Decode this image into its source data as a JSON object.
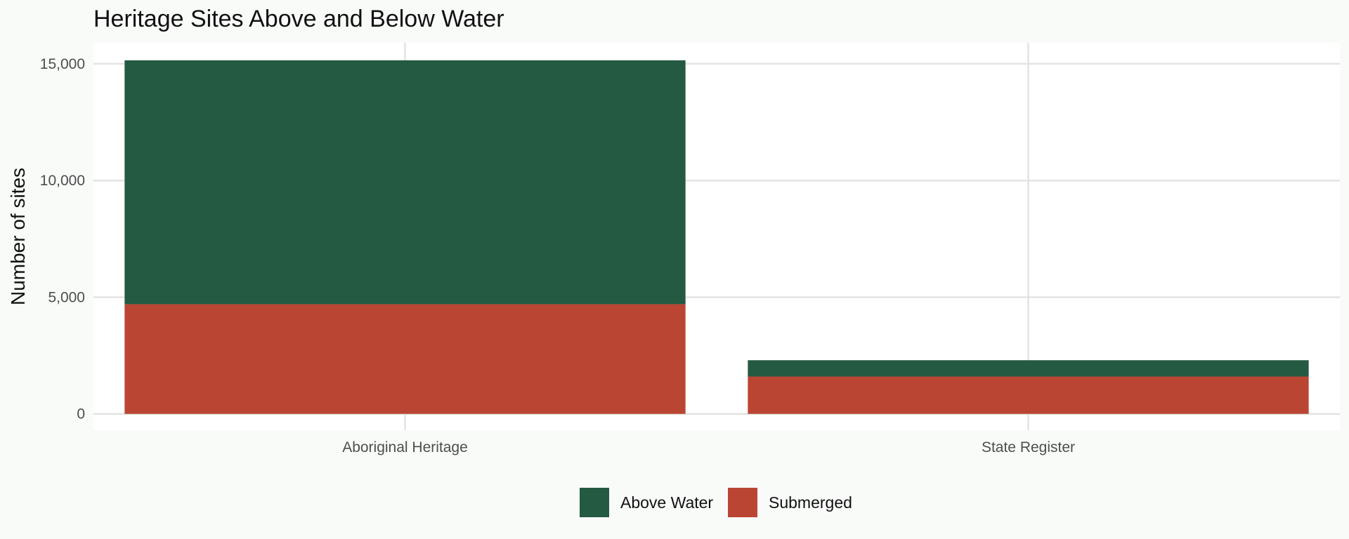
{
  "chart_data": {
    "type": "bar",
    "stacked": true,
    "title": "Heritage Sites Above and Below Water",
    "xlabel": "",
    "ylabel": "Number of sites",
    "categories": [
      "Aboriginal Heritage",
      "State Register"
    ],
    "series": [
      {
        "name": "Submerged",
        "color": "#bb4533",
        "values": [
          4700,
          1600
        ]
      },
      {
        "name": "Above Water",
        "color": "#245a41",
        "values": [
          10450,
          700
        ]
      }
    ],
    "legend_order": [
      "Above Water",
      "Submerged"
    ],
    "ylim": [
      -700,
      15900
    ],
    "yticks": [
      0,
      5000,
      10000,
      15000
    ],
    "ytick_labels": [
      "0",
      "5,000",
      "10,000",
      "15,000"
    ],
    "grid": true,
    "legend_position": "bottom"
  }
}
